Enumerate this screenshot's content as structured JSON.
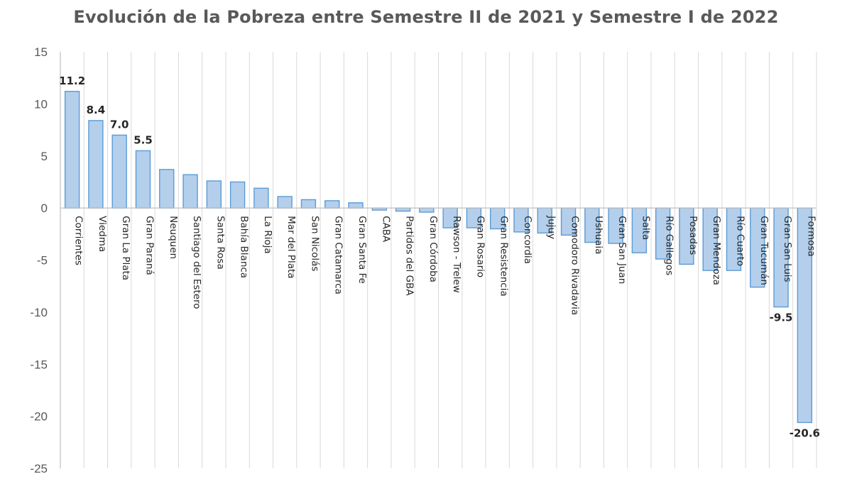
{
  "chart_data": {
    "type": "bar",
    "title": "Evolución de la Pobreza entre Semestre II de 2021 y Semestre I de 2022",
    "xlabel": "",
    "ylabel": "",
    "ylim": [
      -25,
      15
    ],
    "yticks": [
      15,
      10,
      5,
      0,
      -5,
      -10,
      -15,
      -20,
      -25
    ],
    "grid": "vertical",
    "legend": "none",
    "categories": [
      "Corrientes",
      "Viedma",
      "Gran La Plata",
      "Gran Paraná",
      "Neuquen",
      "Santiago del Estero",
      "Santa Rosa",
      "Bahía Blanca",
      "La Rioja",
      "Mar del Plata",
      "San Nicolás",
      "Gran Catamarca",
      "Gran Santa Fe",
      "CABA",
      "Partidos del GBA",
      "Gran Córdoba",
      "Rawson - Trelew",
      "Gran Rosario",
      "Gran Resistencia",
      "Concordia",
      "Jujuy",
      "Comodoro Rivadavia",
      "Ushuaia",
      "Gran San Juan",
      "Salta",
      "Río Gallegos",
      "Posadas",
      "Gran Mendoza",
      "Río Cuarto",
      "Gran Tucumán",
      "Gran San Luis",
      "Formosa"
    ],
    "values": [
      11.2,
      8.4,
      7.0,
      5.5,
      3.7,
      3.2,
      2.6,
      2.5,
      1.9,
      1.1,
      0.8,
      0.7,
      0.5,
      -0.2,
      -0.3,
      -0.4,
      -1.9,
      -1.9,
      -2.0,
      -2.3,
      -2.4,
      -2.6,
      -3.3,
      -3.4,
      -4.3,
      -4.9,
      -5.4,
      -6.0,
      -6.0,
      -7.6,
      -9.5,
      -20.6
    ],
    "data_labels": {
      "0": "11.2",
      "1": "8.4",
      "2": "7.0",
      "3": "5.5",
      "30": "-9.5",
      "31": "-20.6"
    },
    "colors": {
      "bar_fill": "#b4cfeb",
      "bar_stroke": "#5b9bd5"
    }
  }
}
